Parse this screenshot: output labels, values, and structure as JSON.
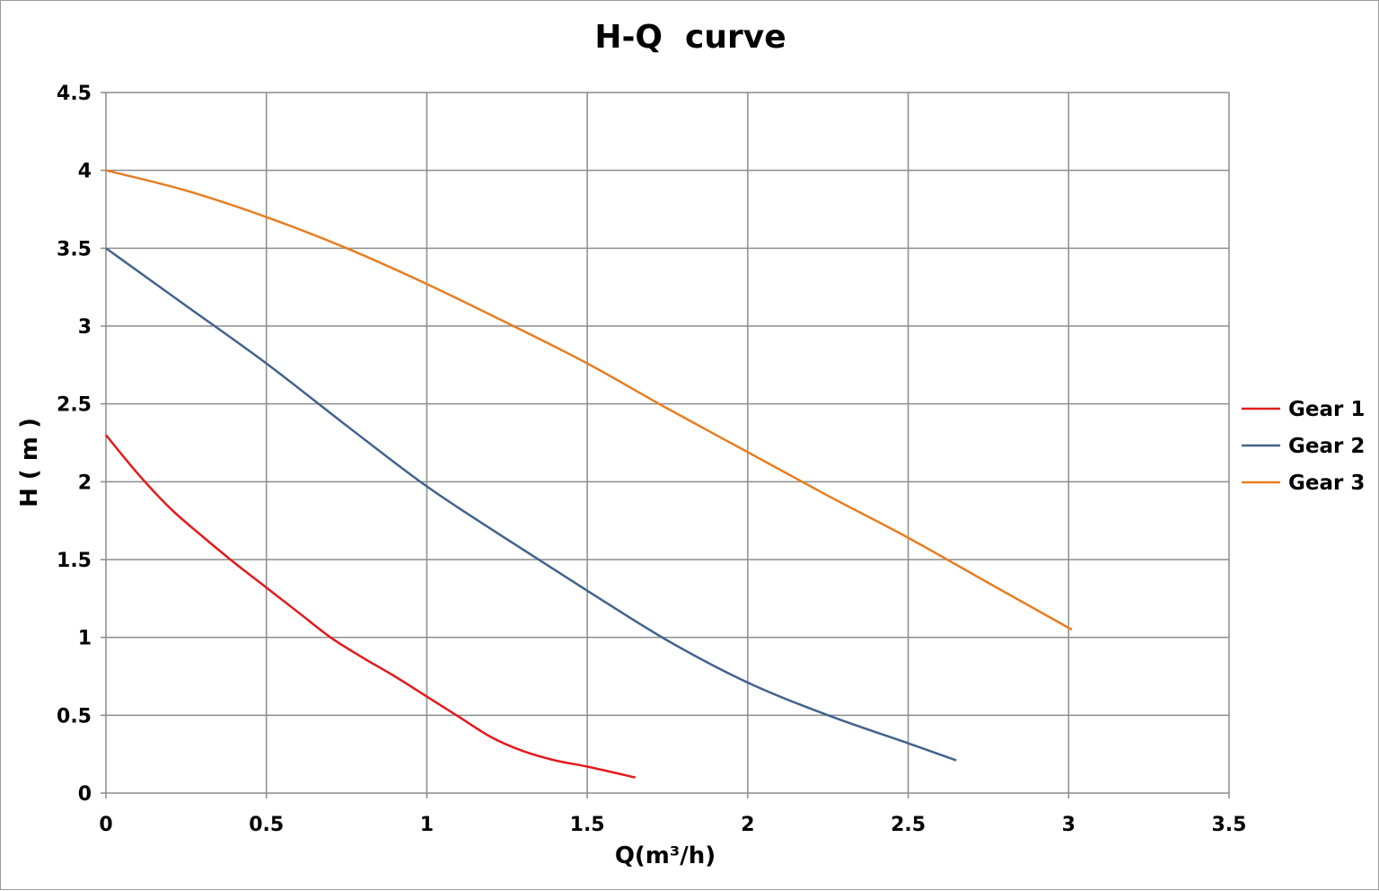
{
  "chart_data": {
    "type": "line",
    "title": "H-Q  curve",
    "xlabel": "Q(m³/h)",
    "ylabel": "H ( m )",
    "xlim": [
      0,
      3.5
    ],
    "ylim": [
      0,
      4.5
    ],
    "x_ticks": [
      "0",
      "0.5",
      "1",
      "1.5",
      "2",
      "2.5",
      "3",
      "3.5"
    ],
    "y_ticks": [
      "0",
      "0.5",
      "1",
      "1.5",
      "2",
      "2.5",
      "3",
      "3.5",
      "4",
      "4.5"
    ],
    "grid": true,
    "legend_position": "right",
    "series": [
      {
        "name": "Gear 1",
        "color": "#e31a1c",
        "points": [
          [
            0,
            2.3
          ],
          [
            0.1,
            2.05
          ],
          [
            0.2,
            1.83
          ],
          [
            0.3,
            1.65
          ],
          [
            0.4,
            1.48
          ],
          [
            0.5,
            1.32
          ],
          [
            0.6,
            1.16
          ],
          [
            0.7,
            1.0
          ],
          [
            0.8,
            0.87
          ],
          [
            0.9,
            0.75
          ],
          [
            1.0,
            0.62
          ],
          [
            1.1,
            0.49
          ],
          [
            1.2,
            0.36
          ],
          [
            1.3,
            0.27
          ],
          [
            1.4,
            0.21
          ],
          [
            1.5,
            0.17
          ],
          [
            1.65,
            0.1
          ]
        ]
      },
      {
        "name": "Gear 2",
        "color": "#41638d",
        "points": [
          [
            0,
            3.5
          ],
          [
            0.25,
            3.13
          ],
          [
            0.5,
            2.76
          ],
          [
            0.75,
            2.36
          ],
          [
            1.0,
            1.97
          ],
          [
            1.25,
            1.63
          ],
          [
            1.5,
            1.3
          ],
          [
            1.75,
            0.98
          ],
          [
            2.0,
            0.71
          ],
          [
            2.25,
            0.5
          ],
          [
            2.5,
            0.32
          ],
          [
            2.65,
            0.21
          ]
        ]
      },
      {
        "name": "Gear 3",
        "color": "#e67e22",
        "points": [
          [
            0,
            4.0
          ],
          [
            0.25,
            3.87
          ],
          [
            0.5,
            3.7
          ],
          [
            0.75,
            3.5
          ],
          [
            1.0,
            3.27
          ],
          [
            1.25,
            3.02
          ],
          [
            1.5,
            2.76
          ],
          [
            1.75,
            2.47
          ],
          [
            2.0,
            2.19
          ],
          [
            2.25,
            1.91
          ],
          [
            2.5,
            1.64
          ],
          [
            2.75,
            1.35
          ],
          [
            3.01,
            1.05
          ]
        ]
      }
    ]
  }
}
